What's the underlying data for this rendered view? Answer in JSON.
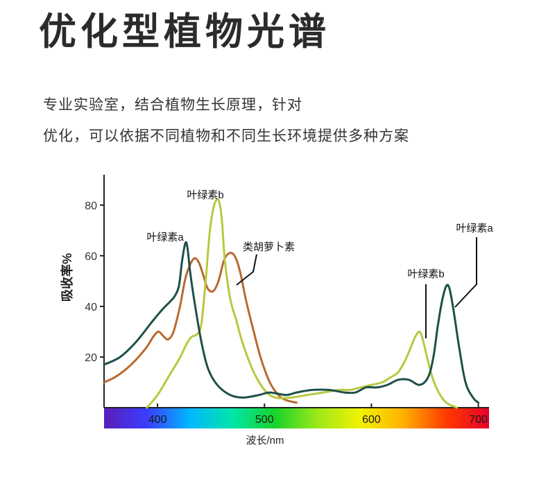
{
  "heading": {
    "title": "优化型植物光谱",
    "line1": "专业实验室，结合植物生长原理，针对",
    "line2": "优化，可以依据不同植物和不同生长环境提供多种方案"
  },
  "chart_data": {
    "type": "line",
    "ylabel": "吸收率%",
    "xlabel": "波长/nm",
    "xlim": [
      350,
      710
    ],
    "ylim": [
      0,
      92
    ],
    "x_ticks": [
      "400",
      "500",
      "600",
      "700"
    ],
    "y_ticks": [
      "20",
      "40",
      "60",
      "80"
    ],
    "grid": false,
    "series": [
      {
        "name": "叶绿素a",
        "color": "#1d4f4a",
        "points": [
          [
            350,
            17
          ],
          [
            365,
            20
          ],
          [
            380,
            26
          ],
          [
            395,
            34
          ],
          [
            405,
            39
          ],
          [
            412,
            42
          ],
          [
            416,
            44
          ],
          [
            420,
            48
          ],
          [
            423,
            58
          ],
          [
            426,
            65
          ],
          [
            428,
            63
          ],
          [
            431,
            52
          ],
          [
            436,
            38
          ],
          [
            441,
            26
          ],
          [
            446,
            17
          ],
          [
            451,
            12
          ],
          [
            458,
            8
          ],
          [
            468,
            5
          ],
          [
            480,
            4
          ],
          [
            495,
            5
          ],
          [
            505,
            6
          ],
          [
            520,
            5
          ],
          [
            530,
            6
          ],
          [
            545,
            7
          ],
          [
            560,
            7
          ],
          [
            575,
            6
          ],
          [
            585,
            6
          ],
          [
            595,
            8
          ],
          [
            605,
            8
          ],
          [
            615,
            9
          ],
          [
            625,
            11
          ],
          [
            635,
            11
          ],
          [
            645,
            9
          ],
          [
            653,
            12
          ],
          [
            658,
            20
          ],
          [
            662,
            32
          ],
          [
            666,
            42
          ],
          [
            670,
            48
          ],
          [
            673,
            47
          ],
          [
            677,
            38
          ],
          [
            682,
            24
          ],
          [
            688,
            10
          ],
          [
            695,
            4
          ],
          [
            700,
            2
          ]
        ]
      },
      {
        "name": "叶绿素b",
        "color": "#b8c840",
        "points": [
          [
            390,
            0
          ],
          [
            400,
            5
          ],
          [
            410,
            12
          ],
          [
            420,
            19
          ],
          [
            427,
            25
          ],
          [
            432,
            28
          ],
          [
            437,
            29
          ],
          [
            441,
            33
          ],
          [
            445,
            50
          ],
          [
            449,
            70
          ],
          [
            453,
            80
          ],
          [
            457,
            82
          ],
          [
            460,
            75
          ],
          [
            463,
            58
          ],
          [
            468,
            43
          ],
          [
            474,
            34
          ],
          [
            480,
            25
          ],
          [
            490,
            14
          ],
          [
            500,
            7
          ],
          [
            510,
            4
          ],
          [
            525,
            4
          ],
          [
            540,
            5
          ],
          [
            555,
            6
          ],
          [
            570,
            7
          ],
          [
            580,
            7
          ],
          [
            590,
            8
          ],
          [
            600,
            9
          ],
          [
            610,
            10
          ],
          [
            618,
            12
          ],
          [
            625,
            14
          ],
          [
            632,
            19
          ],
          [
            637,
            24
          ],
          [
            641,
            28
          ],
          [
            645,
            30
          ],
          [
            648,
            27
          ],
          [
            652,
            20
          ],
          [
            657,
            12
          ],
          [
            663,
            6
          ],
          [
            670,
            2
          ],
          [
            680,
            0
          ]
        ]
      },
      {
        "name": "类胡萝卜素",
        "color": "#b86a2e",
        "points": [
          [
            350,
            10
          ],
          [
            360,
            12
          ],
          [
            370,
            15
          ],
          [
            380,
            19
          ],
          [
            390,
            24
          ],
          [
            396,
            28
          ],
          [
            401,
            30
          ],
          [
            406,
            28
          ],
          [
            410,
            27
          ],
          [
            415,
            30
          ],
          [
            421,
            40
          ],
          [
            426,
            51
          ],
          [
            431,
            57
          ],
          [
            435,
            59
          ],
          [
            439,
            57
          ],
          [
            443,
            52
          ],
          [
            447,
            47
          ],
          [
            452,
            46
          ],
          [
            457,
            50
          ],
          [
            462,
            58
          ],
          [
            467,
            61
          ],
          [
            472,
            60
          ],
          [
            477,
            54
          ],
          [
            483,
            42
          ],
          [
            490,
            30
          ],
          [
            497,
            19
          ],
          [
            505,
            10
          ],
          [
            513,
            5
          ],
          [
            520,
            3
          ],
          [
            530,
            2
          ]
        ]
      }
    ],
    "annotations": [
      {
        "text": "叶绿素b",
        "target": [
          457,
          82
        ]
      },
      {
        "text": "叶绿素a",
        "target": [
          426,
          65
        ]
      },
      {
        "text": "类胡萝卜素",
        "target": [
          472,
          52
        ]
      },
      {
        "text": "叶绿素b",
        "target": [
          650,
          26
        ]
      },
      {
        "text": "叶绿素a",
        "target": [
          676,
          44
        ]
      }
    ],
    "spectrum_colors": [
      "#5a1fb8",
      "#3a3cff",
      "#00b8ff",
      "#00e5a8",
      "#19d32a",
      "#9ee81a",
      "#f2f200",
      "#ffb000",
      "#ff3a00",
      "#e8002a"
    ]
  }
}
